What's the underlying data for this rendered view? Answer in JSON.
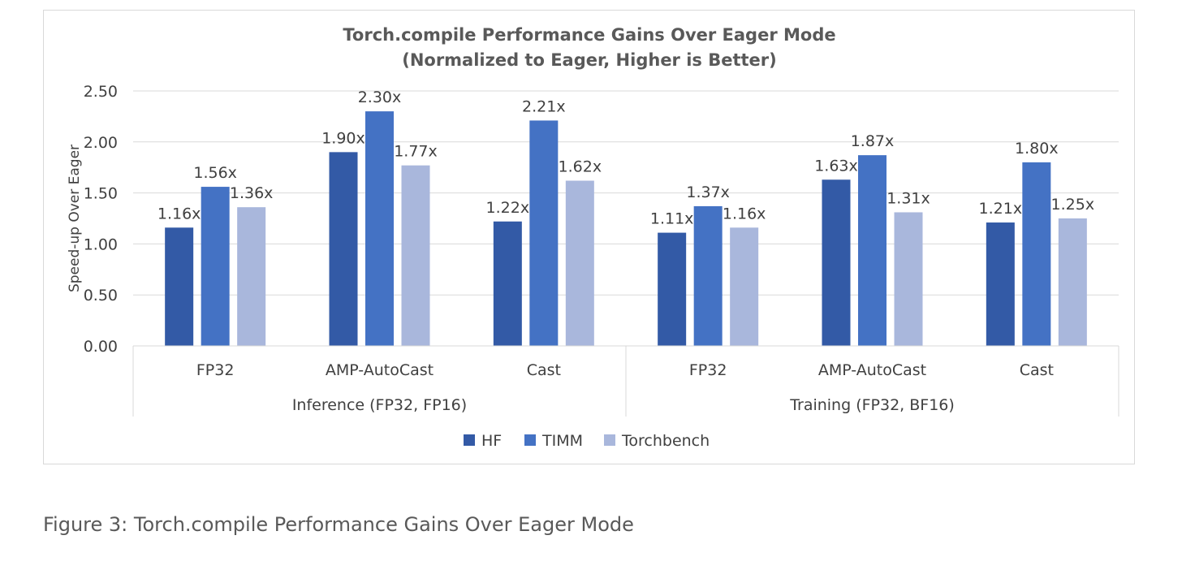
{
  "caption": "Figure 3: Torch.compile Performance Gains Over Eager Mode",
  "chart_data": {
    "type": "bar",
    "title": "Torch.compile Performance Gains Over Eager Mode",
    "subtitle": "(Normalized to Eager, Higher is Better)",
    "ylabel": "Speed-up Over Eager",
    "xlabel": "",
    "ylim": [
      0,
      2.5
    ],
    "yticks": [
      "0.00",
      "0.50",
      "1.00",
      "1.50",
      "2.00",
      "2.50"
    ],
    "grid": true,
    "legend_position": "bottom",
    "groups": [
      {
        "label": "Inference (FP32, FP16)",
        "categories": [
          "FP32",
          "AMP-AutoCast",
          "Cast"
        ]
      },
      {
        "label": "Training (FP32, BF16)",
        "categories": [
          "FP32",
          "AMP-AutoCast",
          "Cast"
        ]
      }
    ],
    "categories": [
      "FP32",
      "AMP-AutoCast",
      "Cast",
      "FP32",
      "AMP-AutoCast",
      "Cast"
    ],
    "series": [
      {
        "name": "HF",
        "color": "#335AA6",
        "values": [
          1.16,
          1.9,
          1.22,
          1.11,
          1.63,
          1.21
        ],
        "labels": [
          "1.16x",
          "1.90x",
          "1.22x",
          "1.11x",
          "1.63x",
          "1.21x"
        ]
      },
      {
        "name": "TIMM",
        "color": "#4472C4",
        "values": [
          1.56,
          2.3,
          2.21,
          1.37,
          1.87,
          1.8
        ],
        "labels": [
          "1.56x",
          "2.30x",
          "2.21x",
          "1.37x",
          "1.87x",
          "1.80x"
        ]
      },
      {
        "name": "Torchbench",
        "color": "#A9B7DC",
        "values": [
          1.36,
          1.77,
          1.62,
          1.16,
          1.31,
          1.25
        ],
        "labels": [
          "1.36x",
          "1.77x",
          "1.62x",
          "1.16x",
          "1.31x",
          "1.25x"
        ]
      }
    ]
  }
}
